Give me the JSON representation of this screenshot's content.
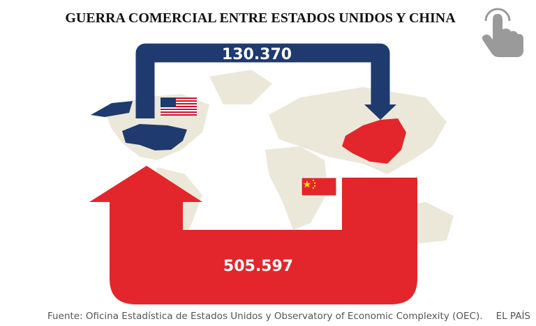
{
  "header": {
    "title": "GUERRA COMERCIAL ENTRE ESTADOS UNIDOS Y CHINA"
  },
  "flows": [
    {
      "label": "130.370"
    },
    {
      "label": "505.597"
    }
  ],
  "footer": {
    "source": "Fuente: Oficina Estadística de Estados Unidos y Observatory of Economic Complexity (OEC).",
    "credit": "EL PAÍS"
  }
}
